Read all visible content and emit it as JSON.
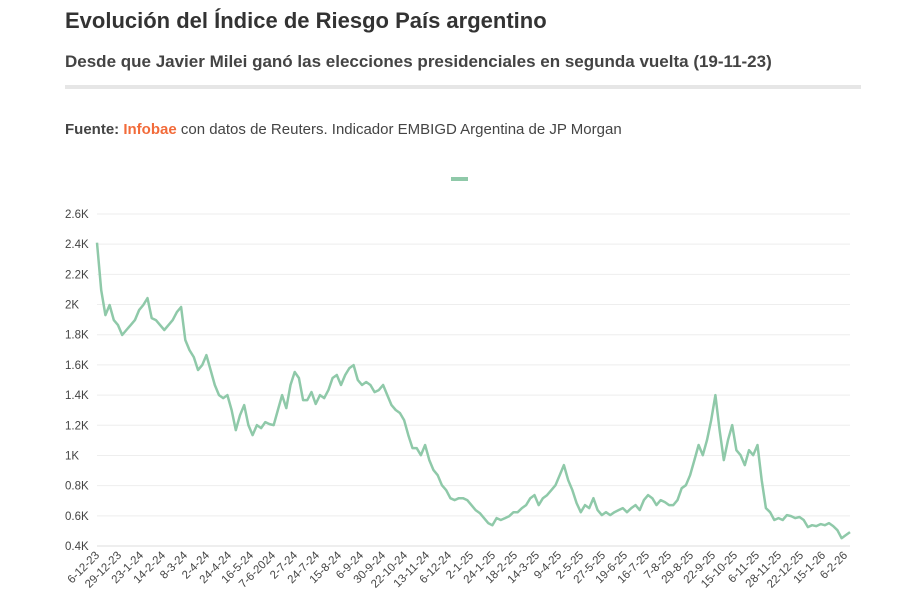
{
  "header": {
    "title": "Evolución del Índice de Riesgo País argentino",
    "subtitle": "Desde que Javier Milei ganó las elecciones presidenciales en segunda vuelta (19-11-23)",
    "source_label": "Fuente:",
    "source_brand": "Infobae",
    "source_text": " con datos de Reuters. Indicador EMBIGD Argentina de JP Morgan"
  },
  "chart_data": {
    "type": "line",
    "title": "Evolución del Índice de Riesgo País argentino",
    "xlabel": "",
    "ylabel": "",
    "ylim": [
      400,
      2600
    ],
    "grid": true,
    "legend": {
      "placement": "top-center",
      "entries": [
        ""
      ]
    },
    "color": "#8fc9a9",
    "yticks": [
      {
        "v": 400,
        "label": "0.4K"
      },
      {
        "v": 600,
        "label": "0.6K"
      },
      {
        "v": 800,
        "label": "0.8K"
      },
      {
        "v": 1000,
        "label": "1K"
      },
      {
        "v": 1200,
        "label": "1.2K"
      },
      {
        "v": 1400,
        "label": "1.4K"
      },
      {
        "v": 1600,
        "label": "1.6K"
      },
      {
        "v": 1800,
        "label": "1.8K"
      },
      {
        "v": 2000,
        "label": "2K"
      },
      {
        "v": 2200,
        "label": "2.2K"
      },
      {
        "v": 2400,
        "label": "2.4K"
      },
      {
        "v": 2600,
        "label": "2.6K"
      }
    ],
    "xticks": [
      "6-12-23",
      "29-12-23",
      "23-1-24",
      "14-2-24",
      "8-3-24",
      "2-4-24",
      "24-4-24",
      "16-5-24",
      "7-6-2024",
      "2-7-24",
      "24-7-24",
      "15-8-24",
      "6-9-24",
      "30-9-24",
      "22-10-24",
      "13-11-24",
      "6-12-24",
      "2-1-25",
      "24-1-25",
      "18-2-25",
      "14-3-25",
      "9-4-25",
      "2-5-25",
      "27-5-25",
      "19-6-25",
      "16-7-25",
      "7-8-25",
      "29-8-25",
      "22-9-25",
      "15-10-25",
      "6-11-25",
      "28-11-25",
      "22-12-25",
      "15-1-26",
      "6-2-26"
    ],
    "values": [
      2410,
      2096,
      1930,
      1997,
      1897,
      1864,
      1798,
      1831,
      1864,
      1897,
      1963,
      1997,
      2043,
      1910,
      1897,
      1864,
      1831,
      1864,
      1897,
      1950,
      1984,
      1765,
      1698,
      1652,
      1566,
      1599,
      1665,
      1566,
      1467,
      1400,
      1380,
      1400,
      1301,
      1168,
      1267,
      1334,
      1201,
      1135,
      1201,
      1181,
      1221,
      1208,
      1201,
      1301,
      1400,
      1314,
      1467,
      1553,
      1513,
      1367,
      1367,
      1420,
      1341,
      1400,
      1380,
      1433,
      1513,
      1533,
      1467,
      1533,
      1579,
      1599,
      1500,
      1467,
      1487,
      1467,
      1420,
      1433,
      1467,
      1400,
      1334,
      1301,
      1281,
      1234,
      1135,
      1049,
      1049,
      1002,
      1069,
      969,
      903,
      869,
      803,
      770,
      717,
      704,
      717,
      717,
      704,
      671,
      638,
      618,
      585,
      552,
      538,
      585,
      572,
      585,
      598,
      624,
      624,
      651,
      671,
      717,
      737,
      671,
      717,
      737,
      770,
      803,
      869,
      936,
      836,
      770,
      684,
      624,
      671,
      651,
      717,
      638,
      605,
      624,
      605,
      624,
      638,
      651,
      624,
      651,
      671,
      638,
      704,
      737,
      717,
      671,
      704,
      691,
      671,
      671,
      704,
      783,
      803,
      869,
      969,
      1069,
      1002,
      1102,
      1234,
      1400,
      1168,
      969,
      1102,
      1201,
      1035,
      1002,
      936,
      1035,
      1002,
      1069,
      836,
      651,
      624,
      572,
      585,
      572,
      605,
      598,
      585,
      592,
      572,
      525,
      538,
      532,
      545,
      538,
      552,
      532,
      505,
      452,
      472,
      492
    ]
  }
}
